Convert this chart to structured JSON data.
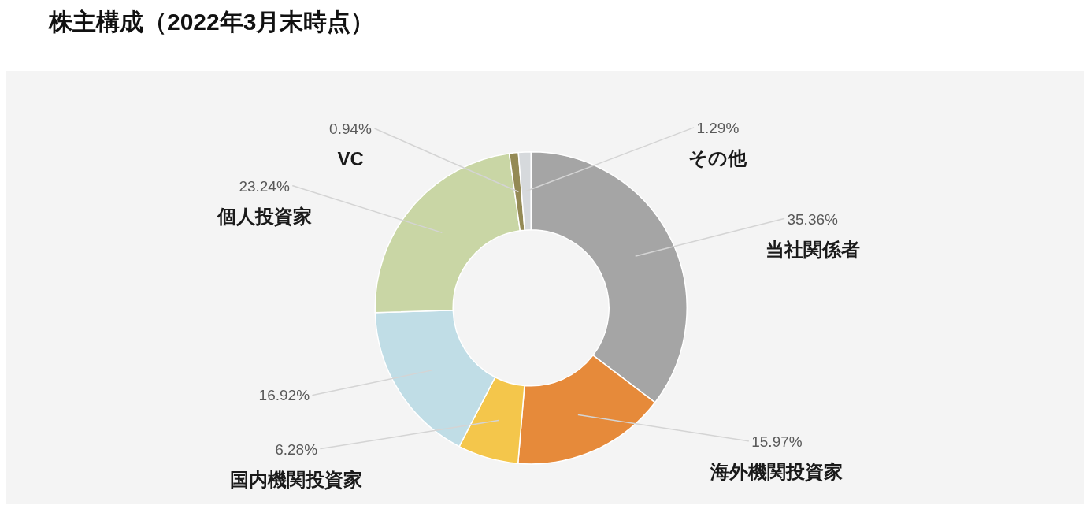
{
  "chart_data": {
    "type": "donut",
    "title": "株主構成（2022年3月末時点）",
    "categories": [
      "当社関係者",
      "海外機関投資家",
      "国内機関投資家",
      null,
      "個人投資家",
      "VC",
      "その他"
    ],
    "values": [
      35.36,
      15.97,
      6.28,
      16.92,
      23.24,
      0.94,
      1.29
    ],
    "colors": [
      "#a5a5a5",
      "#e68a3a",
      "#f4c64b",
      "#c0dde6",
      "#c9d6a5",
      "#948a55",
      "#d6d9dc"
    ],
    "value_labels": [
      "35.36%",
      "15.97%",
      "6.28%",
      "16.92%",
      "23.24%",
      "0.94%",
      "1.29%"
    ]
  }
}
